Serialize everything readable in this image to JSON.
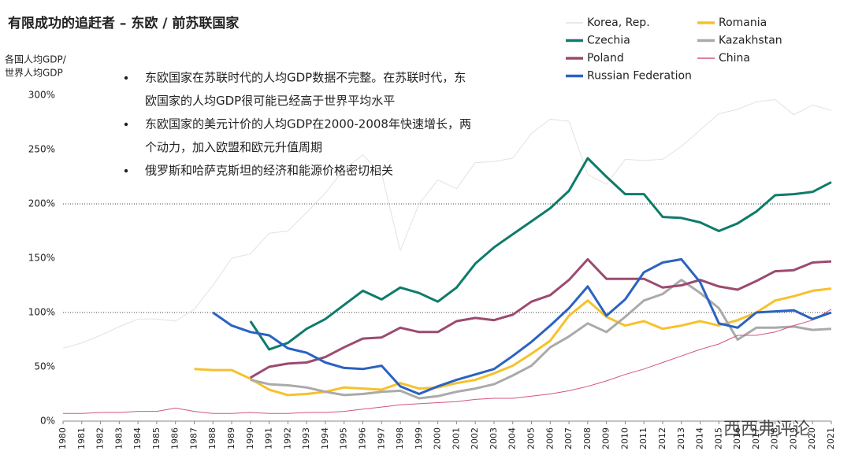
{
  "chart_data": {
    "type": "line",
    "title": "有限成功的追赶者 – 东欧 / 前苏联国家",
    "y_label": [
      "各国人均GDP/",
      "世界人均GDP"
    ],
    "annotations": [
      [
        "东欧国家在苏联时代的人均GDP数据不完整。在苏联时代，东",
        "欧国家的人均GDP很可能已经高于世界平均水平"
      ],
      [
        "东欧国家的美元计价的人均GDP在2000-2008年快速增长，两",
        "个动力，加入欧盟和欧元升值周期"
      ],
      [
        "俄罗斯和哈萨克斯坦的经济和能源价格密切相关"
      ]
    ],
    "watermark": "西西弗评论",
    "x": [
      1980,
      1981,
      1982,
      1983,
      1984,
      1985,
      1986,
      1987,
      1988,
      1989,
      1990,
      1991,
      1992,
      1993,
      1994,
      1995,
      1996,
      1997,
      1998,
      1999,
      2000,
      2001,
      2002,
      2003,
      2004,
      2005,
      2006,
      2007,
      2008,
      2009,
      2010,
      2011,
      2012,
      2013,
      2014,
      2015,
      2016,
      2017,
      2018,
      2019,
      2020,
      2021
    ],
    "xlim": [
      1980,
      2021
    ],
    "ylim": [
      0,
      300
    ],
    "yticks": [
      {
        "value": 0,
        "label": "0%"
      },
      {
        "value": 50,
        "label": "50%"
      },
      {
        "value": 100,
        "label": "100%"
      },
      {
        "value": 150,
        "label": "150%"
      },
      {
        "value": 200,
        "label": "200%"
      },
      {
        "value": 250,
        "label": "250%"
      },
      {
        "value": 300,
        "label": "300%"
      }
    ],
    "grid_lines": [
      100,
      200
    ],
    "series": [
      {
        "name": "Korea, Rep.",
        "color": "#e2e2e2",
        "width": 1,
        "values": [
          67,
          72,
          79,
          87,
          94,
          94,
          92,
          103,
          125,
          150,
          154,
          173,
          175,
          192,
          210,
          232,
          245,
          228,
          157,
          200,
          222,
          214,
          238,
          239,
          242,
          265,
          278,
          276,
          227,
          218,
          241,
          240,
          241,
          253,
          268,
          283,
          287,
          294,
          296,
          282,
          291,
          286
        ]
      },
      {
        "name": "Romania",
        "color": "#f6c12c",
        "width": 3,
        "values": [
          null,
          null,
          null,
          null,
          null,
          null,
          null,
          48,
          47,
          47,
          39,
          29,
          24,
          25,
          27,
          31,
          30,
          29,
          35,
          30,
          31,
          35,
          38,
          44,
          51,
          62,
          74,
          97,
          111,
          96,
          88,
          92,
          85,
          88,
          92,
          88,
          93,
          100,
          111,
          115,
          120,
          122
        ]
      },
      {
        "name": "Czechia",
        "color": "#0f7b6b",
        "width": 3,
        "values": [
          null,
          null,
          null,
          null,
          null,
          null,
          null,
          null,
          null,
          null,
          92,
          66,
          72,
          85,
          94,
          107,
          120,
          112,
          123,
          118,
          110,
          123,
          145,
          160,
          172,
          184,
          196,
          212,
          242,
          225,
          209,
          209,
          188,
          187,
          183,
          175,
          182,
          193,
          208,
          209,
          211,
          220
        ]
      },
      {
        "name": "Kazakhstan",
        "color": "#aaaaaa",
        "width": 3,
        "values": [
          null,
          null,
          null,
          null,
          null,
          null,
          null,
          null,
          null,
          null,
          38,
          34,
          33,
          31,
          27,
          24,
          25,
          27,
          28,
          21,
          23,
          27,
          30,
          34,
          42,
          51,
          68,
          78,
          90,
          82,
          96,
          111,
          117,
          130,
          118,
          104,
          75,
          86,
          86,
          87,
          84,
          85
        ]
      },
      {
        "name": "Poland",
        "color": "#9c4a70",
        "width": 3,
        "values": [
          null,
          null,
          null,
          null,
          null,
          null,
          null,
          null,
          null,
          null,
          40,
          50,
          53,
          54,
          59,
          68,
          76,
          77,
          86,
          82,
          82,
          92,
          95,
          93,
          98,
          110,
          116,
          130,
          149,
          131,
          131,
          131,
          123,
          125,
          130,
          124,
          121,
          129,
          138,
          139,
          146,
          147
        ]
      },
      {
        "name": "China",
        "color": "#d4557b",
        "width": 1,
        "values": [
          7,
          7,
          8,
          8,
          9,
          9,
          12,
          9,
          7,
          7,
          8,
          7,
          7,
          8,
          8,
          9,
          11,
          13,
          15,
          16,
          17,
          18,
          20,
          21,
          21,
          23,
          25,
          28,
          32,
          37,
          43,
          48,
          54,
          60,
          66,
          71,
          79,
          79,
          82,
          88,
          93,
          103
        ]
      },
      {
        "name": "Russian Federation",
        "color": "#2b62c1",
        "width": 3,
        "values": [
          null,
          null,
          null,
          null,
          null,
          null,
          null,
          null,
          100,
          88,
          82,
          79,
          67,
          63,
          54,
          49,
          48,
          51,
          32,
          25,
          32,
          38,
          43,
          48,
          60,
          73,
          88,
          104,
          124,
          97,
          112,
          137,
          146,
          149,
          128,
          90,
          86,
          100,
          101,
          102,
          94,
          100
        ]
      }
    ]
  }
}
